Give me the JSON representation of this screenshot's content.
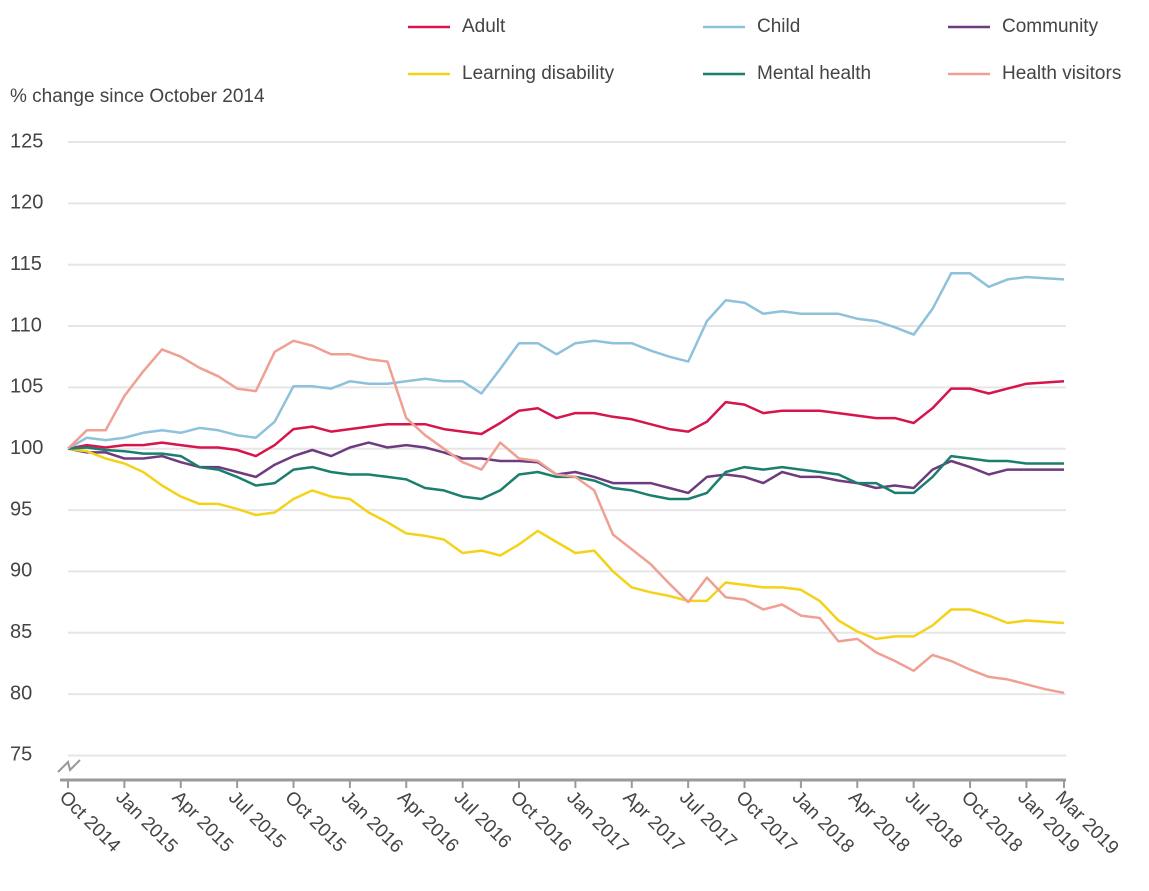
{
  "chart_data": {
    "type": "line",
    "y_axis_label": "% change since October 2014",
    "categories": [
      "Oct 2014",
      null,
      null,
      "Jan 2015",
      null,
      null,
      "Apr 2015",
      null,
      null,
      "Jul 2015",
      null,
      null,
      "Oct 2015",
      null,
      null,
      "Jan 2016",
      null,
      null,
      "Apr 2016",
      null,
      null,
      "Jul 2016",
      null,
      null,
      "Oct 2016",
      null,
      null,
      "Jan 2017",
      null,
      null,
      "Apr 2017",
      null,
      null,
      "Jul 2017",
      null,
      null,
      "Oct 2017",
      null,
      null,
      "Jan 2018",
      null,
      null,
      "Apr 2018",
      null,
      null,
      "Jul 2018",
      null,
      null,
      "Oct 2018",
      null,
      null,
      "Jan 2019",
      null,
      "Mar 2019"
    ],
    "series": [
      {
        "name": "Adult",
        "color": "#d7154d",
        "values": [
          100,
          100.3,
          100.1,
          100.3,
          100.3,
          100.5,
          100.3,
          100.1,
          100.1,
          99.9,
          99.4,
          100.3,
          101.6,
          101.8,
          101.4,
          101.6,
          101.8,
          102,
          102,
          102,
          101.6,
          101.4,
          101.2,
          102.1,
          103.1,
          103.3,
          102.5,
          102.9,
          102.9,
          102.6,
          102.4,
          102,
          101.6,
          101.4,
          102.2,
          103.8,
          103.6,
          102.9,
          103.1,
          103.1,
          103.1,
          102.9,
          102.7,
          102.5,
          102.5,
          102.1,
          103.3,
          104.9,
          104.9,
          104.5,
          104.9,
          105.3,
          105.4,
          105.5
        ]
      },
      {
        "name": "Child",
        "color": "#8ec1dc",
        "values": [
          100,
          100.9,
          100.7,
          100.9,
          101.3,
          101.5,
          101.3,
          101.7,
          101.5,
          101.1,
          100.9,
          102.2,
          105.1,
          105.1,
          104.9,
          105.5,
          105.3,
          105.3,
          105.5,
          105.7,
          105.5,
          105.5,
          104.5,
          106.5,
          108.6,
          108.6,
          107.7,
          108.6,
          108.8,
          108.6,
          108.6,
          108,
          107.5,
          107.1,
          110.4,
          112.1,
          111.9,
          111,
          111.2,
          111,
          111,
          111,
          110.6,
          110.4,
          109.9,
          109.3,
          111.4,
          114.3,
          114.3,
          113.2,
          113.8,
          114,
          113.9,
          113.8
        ]
      },
      {
        "name": "Community",
        "color": "#6e3b7f",
        "values": [
          100,
          99.7,
          99.7,
          99.2,
          99.2,
          99.4,
          98.9,
          98.5,
          98.5,
          98.1,
          97.7,
          98.7,
          99.4,
          99.9,
          99.4,
          100.1,
          100.5,
          100.1,
          100.3,
          100.1,
          99.7,
          99.2,
          99.2,
          99,
          99,
          98.9,
          97.9,
          98.1,
          97.7,
          97.2,
          97.2,
          97.2,
          96.8,
          96.4,
          97.7,
          97.9,
          97.7,
          97.2,
          98.1,
          97.7,
          97.7,
          97.4,
          97.2,
          96.8,
          97,
          96.8,
          98.3,
          99,
          98.5,
          97.9,
          98.3,
          98.3,
          98.3,
          98.3
        ]
      },
      {
        "name": "Learning disability",
        "color": "#f5d21a",
        "values": [
          100,
          99.8,
          99.2,
          98.8,
          98.1,
          97,
          96.1,
          95.5,
          95.5,
          95.1,
          94.6,
          94.8,
          95.9,
          96.6,
          96.1,
          95.9,
          94.8,
          94,
          93.1,
          92.9,
          92.6,
          91.5,
          91.7,
          91.3,
          92.2,
          93.3,
          92.4,
          91.5,
          91.7,
          90,
          88.7,
          88.3,
          88,
          87.6,
          87.6,
          89.1,
          88.9,
          88.7,
          88.7,
          88.5,
          87.6,
          86,
          85.1,
          84.5,
          84.7,
          84.7,
          85.6,
          86.9,
          86.9,
          86.4,
          85.8,
          86,
          85.9,
          85.8
        ]
      },
      {
        "name": "Mental health",
        "color": "#1a7f6d",
        "values": [
          100,
          100.1,
          99.9,
          99.8,
          99.6,
          99.6,
          99.4,
          98.5,
          98.3,
          97.7,
          97,
          97.2,
          98.3,
          98.5,
          98.1,
          97.9,
          97.9,
          97.7,
          97.5,
          96.8,
          96.6,
          96.1,
          95.9,
          96.6,
          97.9,
          98.1,
          97.7,
          97.7,
          97.4,
          96.8,
          96.6,
          96.2,
          95.9,
          95.9,
          96.4,
          98.1,
          98.5,
          98.3,
          98.5,
          98.3,
          98.1,
          97.9,
          97.2,
          97.2,
          96.4,
          96.4,
          97.7,
          99.4,
          99.2,
          99,
          99,
          98.8,
          98.8,
          98.8
        ]
      },
      {
        "name": "Health visitors",
        "color": "#f0a093",
        "values": [
          100,
          101.5,
          101.5,
          104.3,
          106.3,
          108.1,
          107.5,
          106.6,
          105.9,
          104.9,
          104.7,
          107.9,
          108.8,
          108.4,
          107.7,
          107.7,
          107.3,
          107.1,
          102.5,
          101.1,
          100,
          98.9,
          98.3,
          100.5,
          99.2,
          99,
          97.9,
          97.7,
          96.6,
          93,
          91.8,
          90.6,
          89,
          87.5,
          89.5,
          87.9,
          87.7,
          86.9,
          87.3,
          86.4,
          86.2,
          84.3,
          84.5,
          83.4,
          82.7,
          81.9,
          83.2,
          82.7,
          82,
          81.4,
          81.2,
          80.8,
          80.4,
          80.1
        ]
      }
    ],
    "ylim": [
      73,
      125
    ],
    "yticks": [
      75,
      80,
      85,
      90,
      95,
      100,
      105,
      110,
      115,
      120,
      125
    ],
    "grid": true
  }
}
